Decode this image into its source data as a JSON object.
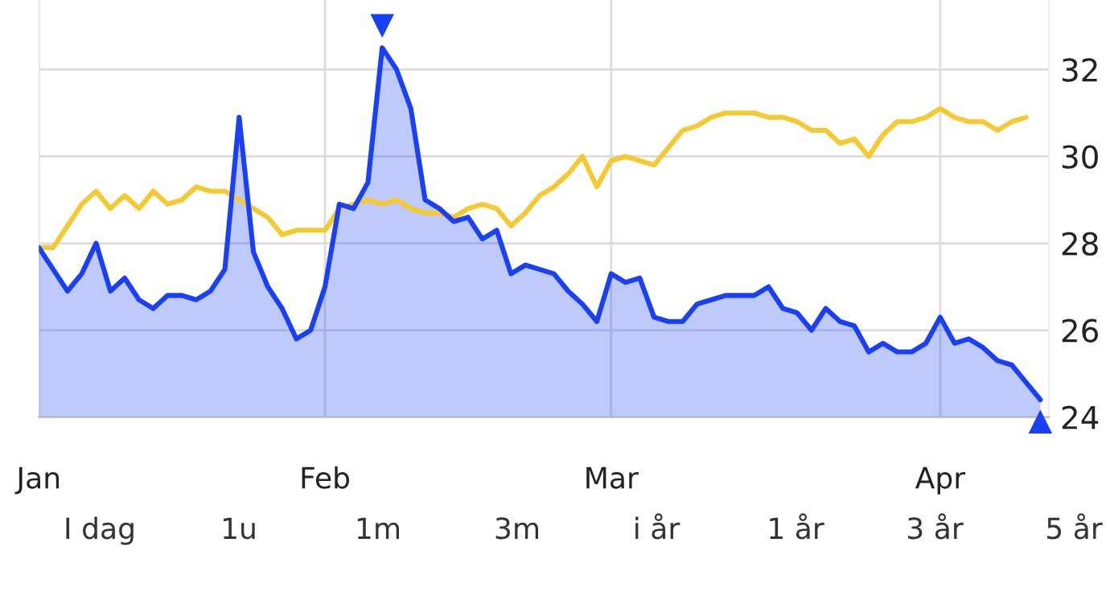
{
  "chart_data": {
    "type": "line",
    "categories": [
      "Jan",
      null,
      null,
      null,
      null,
      null,
      null,
      null,
      null,
      null,
      null,
      null,
      null,
      null,
      null,
      null,
      null,
      null,
      null,
      null,
      "Feb",
      null,
      null,
      null,
      null,
      null,
      null,
      null,
      null,
      null,
      null,
      null,
      null,
      null,
      null,
      null,
      null,
      null,
      null,
      null,
      "Mar",
      null,
      null,
      null,
      null,
      null,
      null,
      null,
      null,
      null,
      null,
      null,
      null,
      null,
      null,
      null,
      null,
      null,
      null,
      null,
      null,
      null,
      null,
      "Apr",
      null,
      null,
      null,
      null,
      null,
      null,
      null
    ],
    "series": [
      {
        "color": "#f5c932",
        "values": [
          27.9,
          27.9,
          28.4,
          28.9,
          29.2,
          28.8,
          29.1,
          28.8,
          29.2,
          28.9,
          29.0,
          29.3,
          29.2,
          29.2,
          29.0,
          28.8,
          28.6,
          28.2,
          28.3,
          28.3,
          28.3,
          28.8,
          28.9,
          29.0,
          28.9,
          29.0,
          28.8,
          28.7,
          28.7,
          28.6,
          28.8,
          28.9,
          28.8,
          28.4,
          28.7,
          29.1,
          29.3,
          29.6,
          30.0,
          29.3,
          29.9,
          30.0,
          29.9,
          29.8,
          30.2,
          30.6,
          30.7,
          30.9,
          31.0,
          31.0,
          31.0,
          30.9,
          30.9,
          30.8,
          30.6,
          30.6,
          30.3,
          30.4,
          30.0,
          30.5,
          30.8,
          30.8,
          30.9,
          31.1,
          30.9,
          30.8,
          30.8,
          30.6,
          30.8,
          30.9,
          null
        ]
      },
      {
        "type": "area",
        "color": "#1a40f5",
        "values": [
          27.9,
          27.4,
          26.9,
          27.3,
          28.0,
          26.9,
          27.2,
          26.7,
          26.5,
          26.8,
          26.8,
          26.7,
          26.9,
          27.4,
          30.9,
          27.8,
          27.0,
          26.5,
          25.8,
          26.0,
          27.0,
          28.9,
          28.8,
          29.4,
          32.5,
          32.0,
          31.1,
          29.0,
          28.8,
          28.5,
          28.6,
          28.1,
          28.3,
          27.3,
          27.5,
          27.4,
          27.3,
          26.9,
          26.6,
          26.2,
          27.3,
          27.1,
          27.2,
          26.3,
          26.2,
          26.2,
          26.6,
          26.7,
          26.8,
          26.8,
          26.8,
          27.0,
          26.5,
          26.4,
          26.0,
          26.5,
          26.2,
          26.1,
          25.5,
          25.7,
          25.5,
          25.5,
          25.7,
          26.3,
          25.7,
          25.8,
          25.6,
          25.3,
          25.2,
          24.8,
          24.4
        ]
      }
    ],
    "ylim": [
      24,
      33.6
    ],
    "yticks": [
      24,
      26,
      28,
      30,
      32
    ],
    "grid": true,
    "annotations": [
      "I dag",
      "1u",
      "1m",
      "3m",
      "i år",
      "1 år",
      "3 år",
      "5 år"
    ]
  }
}
